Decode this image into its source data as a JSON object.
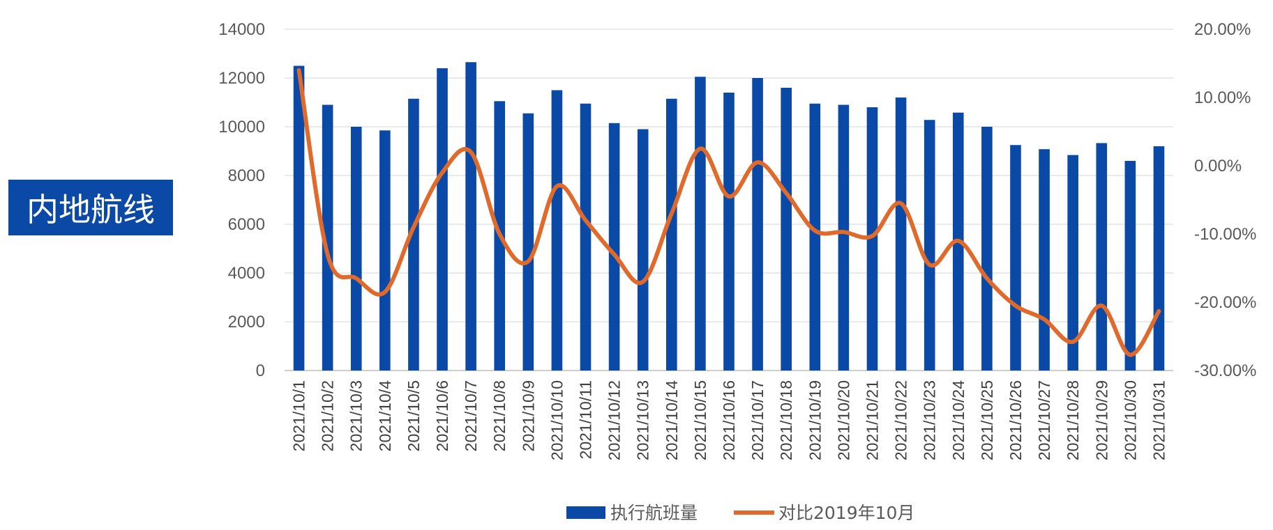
{
  "side_label": "内地航线",
  "chart_data": {
    "type": "bar+line",
    "categories": [
      "2021/10/1",
      "2021/10/2",
      "2021/10/3",
      "2021/10/4",
      "2021/10/5",
      "2021/10/6",
      "2021/10/7",
      "2021/10/8",
      "2021/10/9",
      "2021/10/10",
      "2021/10/11",
      "2021/10/12",
      "2021/10/13",
      "2021/10/14",
      "2021/10/15",
      "2021/10/16",
      "2021/10/17",
      "2021/10/18",
      "2021/10/19",
      "2021/10/20",
      "2021/10/21",
      "2021/10/22",
      "2021/10/23",
      "2021/10/24",
      "2021/10/25",
      "2021/10/26",
      "2021/10/27",
      "2021/10/28",
      "2021/10/29",
      "2021/10/30",
      "2021/10/31"
    ],
    "series": [
      {
        "name": "执行航班量",
        "type": "bar",
        "axis": "left",
        "color": "#0a4aa6",
        "values": [
          12500,
          10900,
          10000,
          9850,
          11150,
          12400,
          12650,
          11050,
          10550,
          11500,
          10950,
          10150,
          9900,
          11150,
          12050,
          11400,
          12000,
          11600,
          10950,
          10900,
          10800,
          11200,
          10280,
          10580,
          10000,
          9250,
          9080,
          8840,
          9330,
          8600,
          9200
        ]
      },
      {
        "name": "对比2019年10月",
        "type": "line",
        "axis": "right",
        "color": "#e06a2b",
        "values": [
          0.14,
          -0.13,
          -0.165,
          -0.185,
          -0.09,
          -0.01,
          0.02,
          -0.1,
          -0.14,
          -0.03,
          -0.08,
          -0.13,
          -0.17,
          -0.07,
          0.025,
          -0.045,
          0.005,
          -0.04,
          -0.095,
          -0.097,
          -0.103,
          -0.055,
          -0.145,
          -0.11,
          -0.165,
          -0.205,
          -0.225,
          -0.258,
          -0.205,
          -0.277,
          -0.213
        ]
      }
    ],
    "yleft": {
      "ticks": [
        "0",
        "2000",
        "4000",
        "6000",
        "8000",
        "10000",
        "12000",
        "14000"
      ],
      "range": [
        0,
        14000
      ]
    },
    "yright": {
      "ticks": [
        "-30.00%",
        "-20.00%",
        "-10.00%",
        "0.00%",
        "10.00%",
        "20.00%"
      ],
      "range": [
        -0.3,
        0.2
      ]
    },
    "grid": true,
    "legend": "bottom-center"
  }
}
